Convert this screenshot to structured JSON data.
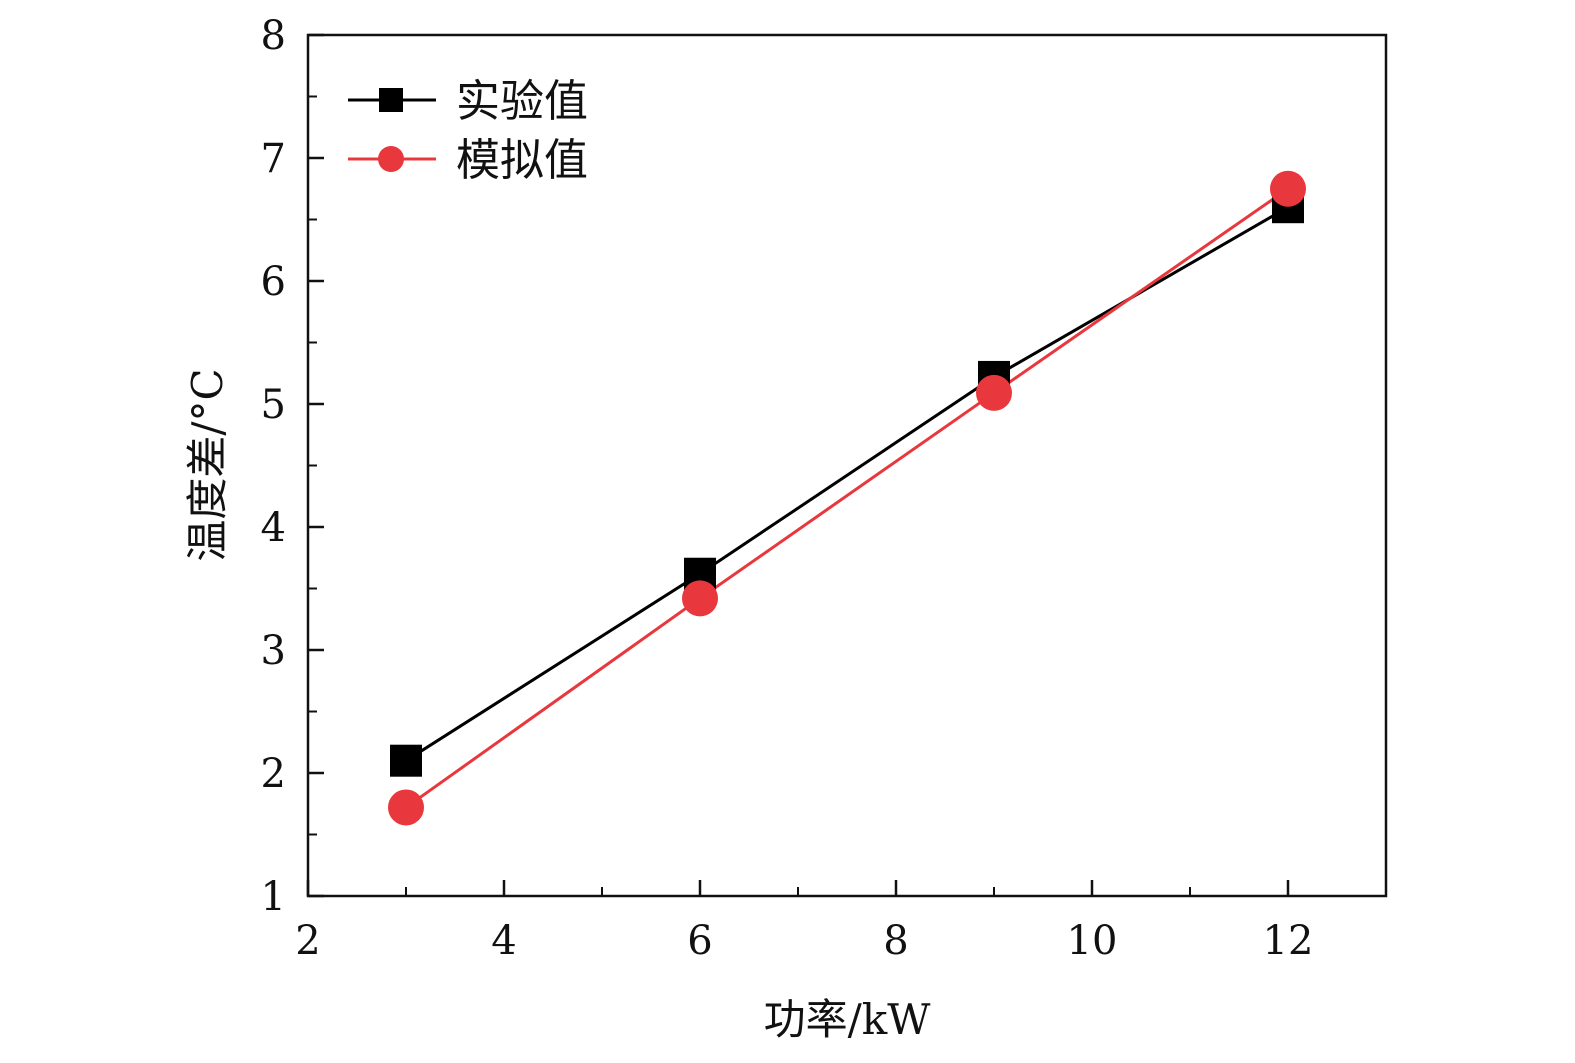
{
  "chart_data": {
    "type": "line",
    "title": "",
    "xlabel": "功率/kW",
    "ylabel": "温度差/°C",
    "xlim": [
      2,
      13
    ],
    "ylim": [
      1,
      8
    ],
    "xticks": [
      2,
      4,
      6,
      8,
      10,
      12
    ],
    "yticks": [
      1,
      2,
      3,
      4,
      5,
      6,
      7,
      8
    ],
    "xtick_labels": [
      "2",
      "4",
      "6",
      "8",
      "10",
      "12"
    ],
    "ytick_labels": [
      "1",
      "2",
      "3",
      "4",
      "5",
      "6",
      "7",
      "8"
    ],
    "grid": false,
    "legend_position": "top-left",
    "series": [
      {
        "name": "实验值",
        "marker": "square",
        "color": "#000000",
        "x": [
          3,
          6,
          9,
          12
        ],
        "y": [
          2.1,
          3.62,
          5.22,
          6.6
        ]
      },
      {
        "name": "模拟值",
        "marker": "circle",
        "color": "#e8383d",
        "x": [
          3,
          6,
          9,
          12
        ],
        "y": [
          1.72,
          3.42,
          5.09,
          6.75
        ]
      }
    ]
  }
}
